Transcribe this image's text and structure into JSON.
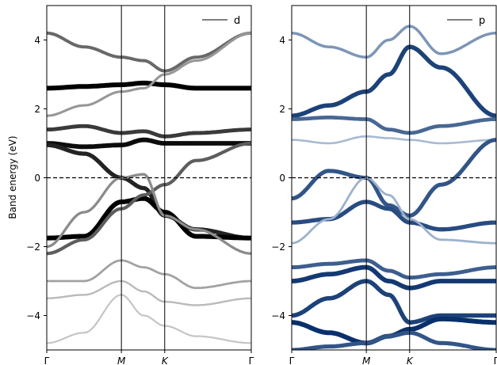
{
  "chart_data": [
    {
      "type": "line",
      "ylabel": "Band energy (eV)",
      "ylim": [
        -5,
        5
      ],
      "yticks": [
        4,
        2,
        0,
        -2,
        -4
      ],
      "ytick_labels": [
        "4",
        "2",
        "0",
        "−2",
        "−4"
      ],
      "xticks": [
        0,
        1,
        1.58,
        2.74
      ],
      "xtick_labels": [
        "Γ",
        "M",
        "K",
        "Γ"
      ],
      "xlim": [
        0,
        2.74
      ],
      "fermi_level": 0,
      "legend": {
        "label": "d",
        "placement": "top-right"
      },
      "colormap": "Greys",
      "series": [
        {
          "k": [
            0,
            0.5,
            1.0,
            1.3,
            1.58,
            2.0,
            2.74
          ],
          "e": [
            4.2,
            3.8,
            3.5,
            3.4,
            3.1,
            3.5,
            4.2
          ],
          "w": 0.55
        },
        {
          "k": [
            0,
            0.5,
            1.0,
            1.3,
            1.58,
            2.0,
            2.74
          ],
          "e": [
            2.6,
            2.65,
            2.7,
            2.75,
            2.7,
            2.6,
            2.6
          ],
          "w": 1.0
        },
        {
          "k": [
            0,
            0.5,
            1.0,
            1.3,
            1.58,
            2.0,
            2.74
          ],
          "e": [
            1.8,
            2.1,
            2.5,
            2.6,
            3.0,
            3.4,
            4.2
          ],
          "w": 0.35
        },
        {
          "k": [
            0,
            0.5,
            1.0,
            1.3,
            1.58,
            2.0,
            2.74
          ],
          "e": [
            1.4,
            1.5,
            1.3,
            1.35,
            1.2,
            1.3,
            1.4
          ],
          "w": 0.75
        },
        {
          "k": [
            0,
            0.5,
            1.0,
            1.3,
            1.58,
            2.0,
            2.74
          ],
          "e": [
            1.0,
            0.9,
            0.95,
            1.1,
            1.0,
            1.0,
            1.0
          ],
          "w": 0.95
        },
        {
          "k": [
            0,
            0.5,
            1.0,
            1.3,
            1.58,
            2.0,
            2.74
          ],
          "e": [
            0.95,
            0.7,
            0.0,
            -0.3,
            -1.1,
            -1.5,
            -1.75
          ],
          "w": 0.85
        },
        {
          "k": [
            0,
            0.5,
            1.0,
            1.3,
            1.58,
            2.0,
            2.74
          ],
          "e": [
            -1.75,
            -1.7,
            -0.7,
            -0.6,
            -1.0,
            -1.7,
            -1.75
          ],
          "w": 1.0
        },
        {
          "k": [
            0,
            0.5,
            1.0,
            1.3,
            1.58,
            2.0,
            2.74
          ],
          "e": [
            -2.2,
            -1.8,
            -0.9,
            -0.5,
            -0.2,
            0.5,
            1.0
          ],
          "w": 0.6
        },
        {
          "k": [
            0,
            0.5,
            1.0,
            1.3,
            1.58,
            2.0,
            2.74
          ],
          "e": [
            -2.0,
            -1.0,
            0.0,
            0.1,
            -1.1,
            -1.5,
            -2.2
          ],
          "w": 0.4
        },
        {
          "k": [
            0,
            0.5,
            1.0,
            1.3,
            1.58,
            2.0,
            2.74
          ],
          "e": [
            -3.0,
            -3.0,
            -2.4,
            -2.6,
            -2.8,
            -3.2,
            -3.0
          ],
          "w": 0.3
        },
        {
          "k": [
            0,
            0.5,
            1.0,
            1.3,
            1.58,
            2.0,
            2.74
          ],
          "e": [
            -3.5,
            -3.4,
            -3.0,
            -3.3,
            -3.6,
            -3.7,
            -3.5
          ],
          "w": 0.2
        },
        {
          "k": [
            0,
            0.5,
            1.0,
            1.3,
            1.58,
            2.0,
            2.74
          ],
          "e": [
            -4.8,
            -4.5,
            -3.4,
            -4.0,
            -4.3,
            -4.6,
            -4.8
          ],
          "w": 0.15
        }
      ]
    },
    {
      "type": "line",
      "ylim": [
        -5,
        5
      ],
      "yticks": [
        4,
        2,
        0,
        -2,
        -4
      ],
      "ytick_labels": [
        "4",
        "2",
        "0",
        "−2",
        "−4"
      ],
      "xticks": [
        0,
        1,
        1.58,
        2.74
      ],
      "xtick_labels": [
        "Γ",
        "M",
        "K",
        "Γ"
      ],
      "xlim": [
        0,
        2.74
      ],
      "fermi_level": 0,
      "legend": {
        "label": "p",
        "placement": "top-right"
      },
      "colormap": "Blues",
      "series": [
        {
          "k": [
            0,
            0.5,
            1.0,
            1.3,
            1.58,
            2.0,
            2.74
          ],
          "e": [
            4.2,
            3.8,
            3.5,
            4.0,
            4.4,
            3.6,
            4.2
          ],
          "w": 0.45
        },
        {
          "k": [
            0,
            0.5,
            1.0,
            1.3,
            1.58,
            2.0,
            2.74
          ],
          "e": [
            1.8,
            2.1,
            2.5,
            3.0,
            3.8,
            3.2,
            1.8
          ],
          "w": 0.9
        },
        {
          "k": [
            0,
            0.5,
            1.0,
            1.3,
            1.58,
            2.0,
            2.74
          ],
          "e": [
            1.7,
            1.75,
            1.7,
            1.4,
            1.3,
            1.5,
            1.7
          ],
          "w": 0.7
        },
        {
          "k": [
            0,
            0.5,
            1.0,
            1.3,
            1.58,
            2.0,
            2.74
          ],
          "e": [
            1.1,
            1.0,
            1.2,
            1.15,
            1.1,
            1.0,
            1.1
          ],
          "w": 0.25
        },
        {
          "k": [
            0,
            0.5,
            1.0,
            1.3,
            1.58,
            2.0,
            2.74
          ],
          "e": [
            -0.6,
            0.2,
            0.0,
            -0.8,
            -1.1,
            -0.2,
            1.1
          ],
          "w": 0.8
        },
        {
          "k": [
            0,
            0.5,
            1.0,
            1.3,
            1.58,
            2.0,
            2.74
          ],
          "e": [
            -1.3,
            -1.2,
            -0.7,
            -0.9,
            -1.3,
            -1.5,
            -1.3
          ],
          "w": 0.85
        },
        {
          "k": [
            0,
            0.5,
            1.0,
            1.3,
            1.58,
            2.0,
            2.74
          ],
          "e": [
            -1.9,
            -1.2,
            0.0,
            -0.5,
            -1.2,
            -1.8,
            -1.9
          ],
          "w": 0.3
        },
        {
          "k": [
            0,
            0.5,
            1.0,
            1.3,
            1.58,
            2.0,
            2.74
          ],
          "e": [
            -2.6,
            -2.5,
            -2.4,
            -2.7,
            -2.9,
            -2.8,
            -2.6
          ],
          "w": 0.75
        },
        {
          "k": [
            0,
            0.5,
            1.0,
            1.3,
            1.58,
            2.0,
            2.74
          ],
          "e": [
            -3.0,
            -2.8,
            -2.6,
            -3.0,
            -3.2,
            -3.0,
            -3.0
          ],
          "w": 0.95
        },
        {
          "k": [
            0,
            0.5,
            1.0,
            1.3,
            1.58,
            2.0,
            2.74
          ],
          "e": [
            -4.0,
            -3.5,
            -3.0,
            -3.4,
            -4.2,
            -4.0,
            -4.0
          ],
          "w": 0.9
        },
        {
          "k": [
            0,
            0.5,
            1.0,
            1.3,
            1.58,
            2.0,
            2.74
          ],
          "e": [
            -4.2,
            -4.5,
            -4.8,
            -4.6,
            -4.4,
            -4.1,
            -4.2
          ],
          "w": 1.0
        },
        {
          "k": [
            0,
            0.5,
            1.0,
            1.3,
            1.58,
            2.0,
            2.74
          ],
          "e": [
            -5.0,
            -4.9,
            -4.8,
            -4.6,
            -4.5,
            -4.8,
            -5.0
          ],
          "w": 0.8
        }
      ]
    }
  ]
}
